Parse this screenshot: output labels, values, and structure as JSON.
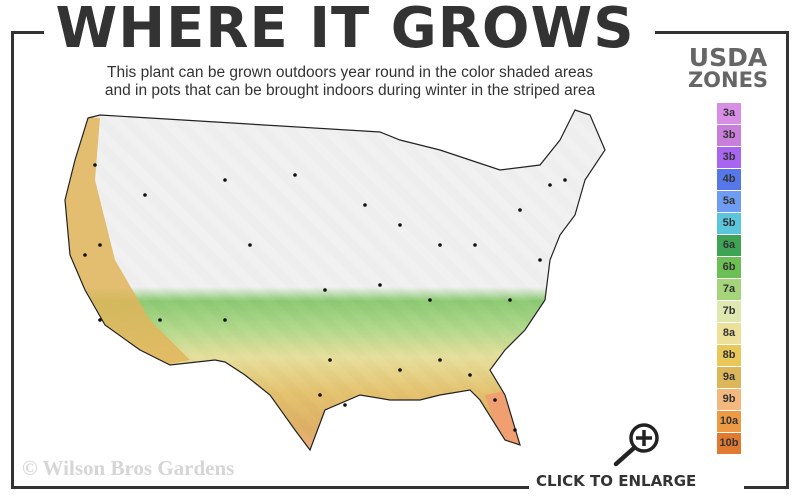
{
  "header": {
    "title": "WHERE IT GROWS",
    "subtitle_line1": "This plant can be grown outdoors year round in the color shaded areas",
    "subtitle_line2": "and in pots that can be brought indoors during winter in the striped area"
  },
  "legend": {
    "title_line1": "USDA",
    "title_line2": "ZONES",
    "zones": [
      {
        "label": "3a",
        "color": "#d98ee6"
      },
      {
        "label": "3b",
        "color": "#c77fd9"
      },
      {
        "label": "3b",
        "color": "#a866f0"
      },
      {
        "label": "4b",
        "color": "#5577e8"
      },
      {
        "label": "5a",
        "color": "#6e9cf2"
      },
      {
        "label": "5b",
        "color": "#5bc6db"
      },
      {
        "label": "6a",
        "color": "#3fa356"
      },
      {
        "label": "6b",
        "color": "#6cbf54"
      },
      {
        "label": "7a",
        "color": "#a6d47a"
      },
      {
        "label": "7b",
        "color": "#dfe8b0"
      },
      {
        "label": "8a",
        "color": "#ece09a"
      },
      {
        "label": "8b",
        "color": "#e8c85a"
      },
      {
        "label": "9a",
        "color": "#dcb65a"
      },
      {
        "label": "9b",
        "color": "#f2b87e"
      },
      {
        "label": "10a",
        "color": "#ee9a44"
      },
      {
        "label": "10b",
        "color": "#e07a30"
      }
    ]
  },
  "map": {
    "growing_area": "zones 7a-10b shaded",
    "pot_area": "striped"
  },
  "footer": {
    "copyright": "© Wilson Bros Gardens",
    "enlarge_label": "CLICK TO ENLARGE"
  }
}
